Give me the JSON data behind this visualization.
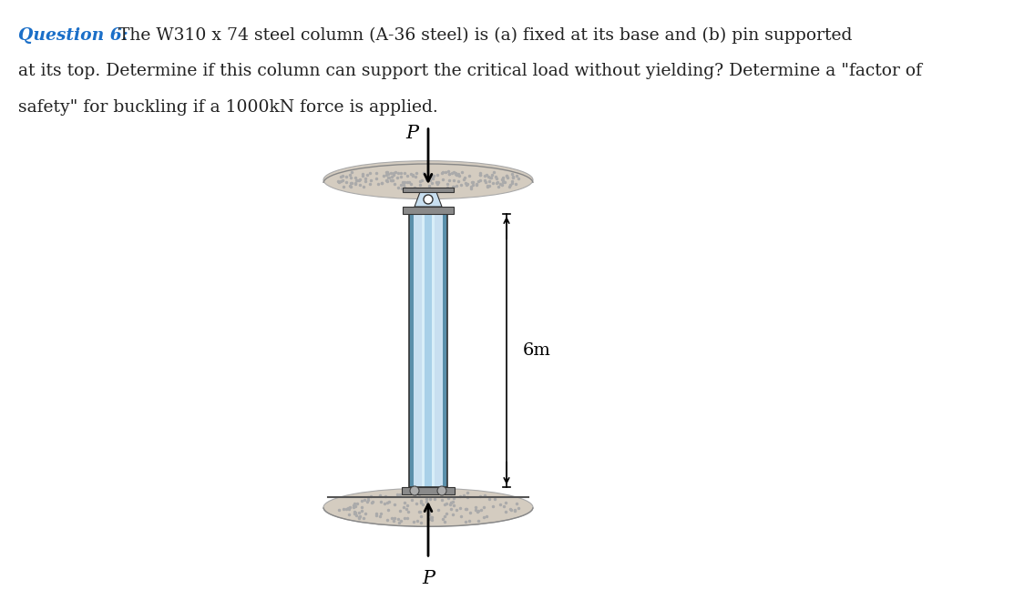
{
  "title_bold": "Question 6:",
  "title_normal": " The W310 x 74 steel column (A-36 steel) is (a) fixed at its base and (b) pin supported\nat its top. Determine if this column can support the critical load without yielding? Determine a \"factor of\nsafety\" for buckling if a 1000kN force is applied.",
  "title_color": "#1b6fc8",
  "title_normal_color": "#222222",
  "bg_color": "#ffffff",
  "col_light": "#c8dff0",
  "col_mid": "#8bbdd4",
  "col_dark": "#5a8faa",
  "col_center": "#a8d0e8",
  "col_center2": "#d8eef8",
  "support_color": "#d4ccc0",
  "support_dark": "#b0a898",
  "plate_color": "#8a8a8a",
  "plate_dark": "#555555",
  "dim_label": "6m",
  "P_label": "P"
}
